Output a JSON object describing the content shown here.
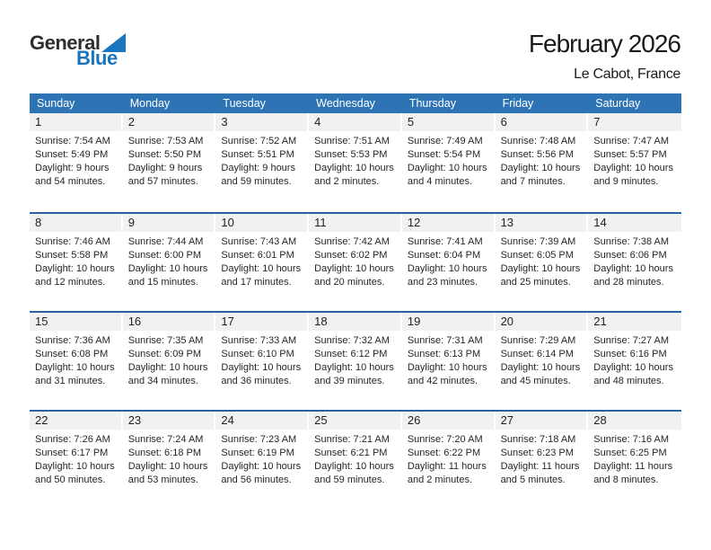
{
  "logo": {
    "line1": "General",
    "line2": "Blue"
  },
  "header": {
    "title": "February 2026",
    "location": "Le Cabot, France"
  },
  "colors": {
    "header_bg": "#2E74B5",
    "week_divider": "#27649E",
    "day_band_gray": "#F1F1F1",
    "logo_blue": "#1B75BC",
    "text": "#262626"
  },
  "weekdays": [
    "Sunday",
    "Monday",
    "Tuesday",
    "Wednesday",
    "Thursday",
    "Friday",
    "Saturday"
  ],
  "weeks": [
    [
      {
        "day": "1",
        "sunrise": "Sunrise: 7:54 AM",
        "sunset": "Sunset: 5:49 PM",
        "daylight1": "Daylight: 9 hours",
        "daylight2": "and 54 minutes."
      },
      {
        "day": "2",
        "sunrise": "Sunrise: 7:53 AM",
        "sunset": "Sunset: 5:50 PM",
        "daylight1": "Daylight: 9 hours",
        "daylight2": "and 57 minutes."
      },
      {
        "day": "3",
        "sunrise": "Sunrise: 7:52 AM",
        "sunset": "Sunset: 5:51 PM",
        "daylight1": "Daylight: 9 hours",
        "daylight2": "and 59 minutes."
      },
      {
        "day": "4",
        "sunrise": "Sunrise: 7:51 AM",
        "sunset": "Sunset: 5:53 PM",
        "daylight1": "Daylight: 10 hours",
        "daylight2": "and 2 minutes."
      },
      {
        "day": "5",
        "sunrise": "Sunrise: 7:49 AM",
        "sunset": "Sunset: 5:54 PM",
        "daylight1": "Daylight: 10 hours",
        "daylight2": "and 4 minutes."
      },
      {
        "day": "6",
        "sunrise": "Sunrise: 7:48 AM",
        "sunset": "Sunset: 5:56 PM",
        "daylight1": "Daylight: 10 hours",
        "daylight2": "and 7 minutes."
      },
      {
        "day": "7",
        "sunrise": "Sunrise: 7:47 AM",
        "sunset": "Sunset: 5:57 PM",
        "daylight1": "Daylight: 10 hours",
        "daylight2": "and 9 minutes."
      }
    ],
    [
      {
        "day": "8",
        "sunrise": "Sunrise: 7:46 AM",
        "sunset": "Sunset: 5:58 PM",
        "daylight1": "Daylight: 10 hours",
        "daylight2": "and 12 minutes."
      },
      {
        "day": "9",
        "sunrise": "Sunrise: 7:44 AM",
        "sunset": "Sunset: 6:00 PM",
        "daylight1": "Daylight: 10 hours",
        "daylight2": "and 15 minutes."
      },
      {
        "day": "10",
        "sunrise": "Sunrise: 7:43 AM",
        "sunset": "Sunset: 6:01 PM",
        "daylight1": "Daylight: 10 hours",
        "daylight2": "and 17 minutes."
      },
      {
        "day": "11",
        "sunrise": "Sunrise: 7:42 AM",
        "sunset": "Sunset: 6:02 PM",
        "daylight1": "Daylight: 10 hours",
        "daylight2": "and 20 minutes."
      },
      {
        "day": "12",
        "sunrise": "Sunrise: 7:41 AM",
        "sunset": "Sunset: 6:04 PM",
        "daylight1": "Daylight: 10 hours",
        "daylight2": "and 23 minutes."
      },
      {
        "day": "13",
        "sunrise": "Sunrise: 7:39 AM",
        "sunset": "Sunset: 6:05 PM",
        "daylight1": "Daylight: 10 hours",
        "daylight2": "and 25 minutes."
      },
      {
        "day": "14",
        "sunrise": "Sunrise: 7:38 AM",
        "sunset": "Sunset: 6:06 PM",
        "daylight1": "Daylight: 10 hours",
        "daylight2": "and 28 minutes."
      }
    ],
    [
      {
        "day": "15",
        "sunrise": "Sunrise: 7:36 AM",
        "sunset": "Sunset: 6:08 PM",
        "daylight1": "Daylight: 10 hours",
        "daylight2": "and 31 minutes."
      },
      {
        "day": "16",
        "sunrise": "Sunrise: 7:35 AM",
        "sunset": "Sunset: 6:09 PM",
        "daylight1": "Daylight: 10 hours",
        "daylight2": "and 34 minutes."
      },
      {
        "day": "17",
        "sunrise": "Sunrise: 7:33 AM",
        "sunset": "Sunset: 6:10 PM",
        "daylight1": "Daylight: 10 hours",
        "daylight2": "and 36 minutes."
      },
      {
        "day": "18",
        "sunrise": "Sunrise: 7:32 AM",
        "sunset": "Sunset: 6:12 PM",
        "daylight1": "Daylight: 10 hours",
        "daylight2": "and 39 minutes."
      },
      {
        "day": "19",
        "sunrise": "Sunrise: 7:31 AM",
        "sunset": "Sunset: 6:13 PM",
        "daylight1": "Daylight: 10 hours",
        "daylight2": "and 42 minutes."
      },
      {
        "day": "20",
        "sunrise": "Sunrise: 7:29 AM",
        "sunset": "Sunset: 6:14 PM",
        "daylight1": "Daylight: 10 hours",
        "daylight2": "and 45 minutes."
      },
      {
        "day": "21",
        "sunrise": "Sunrise: 7:27 AM",
        "sunset": "Sunset: 6:16 PM",
        "daylight1": "Daylight: 10 hours",
        "daylight2": "and 48 minutes."
      }
    ],
    [
      {
        "day": "22",
        "sunrise": "Sunrise: 7:26 AM",
        "sunset": "Sunset: 6:17 PM",
        "daylight1": "Daylight: 10 hours",
        "daylight2": "and 50 minutes."
      },
      {
        "day": "23",
        "sunrise": "Sunrise: 7:24 AM",
        "sunset": "Sunset: 6:18 PM",
        "daylight1": "Daylight: 10 hours",
        "daylight2": "and 53 minutes."
      },
      {
        "day": "24",
        "sunrise": "Sunrise: 7:23 AM",
        "sunset": "Sunset: 6:19 PM",
        "daylight1": "Daylight: 10 hours",
        "daylight2": "and 56 minutes."
      },
      {
        "day": "25",
        "sunrise": "Sunrise: 7:21 AM",
        "sunset": "Sunset: 6:21 PM",
        "daylight1": "Daylight: 10 hours",
        "daylight2": "and 59 minutes."
      },
      {
        "day": "26",
        "sunrise": "Sunrise: 7:20 AM",
        "sunset": "Sunset: 6:22 PM",
        "daylight1": "Daylight: 11 hours",
        "daylight2": "and 2 minutes."
      },
      {
        "day": "27",
        "sunrise": "Sunrise: 7:18 AM",
        "sunset": "Sunset: 6:23 PM",
        "daylight1": "Daylight: 11 hours",
        "daylight2": "and 5 minutes."
      },
      {
        "day": "28",
        "sunrise": "Sunrise: 7:16 AM",
        "sunset": "Sunset: 6:25 PM",
        "daylight1": "Daylight: 11 hours",
        "daylight2": "and 8 minutes."
      }
    ]
  ]
}
